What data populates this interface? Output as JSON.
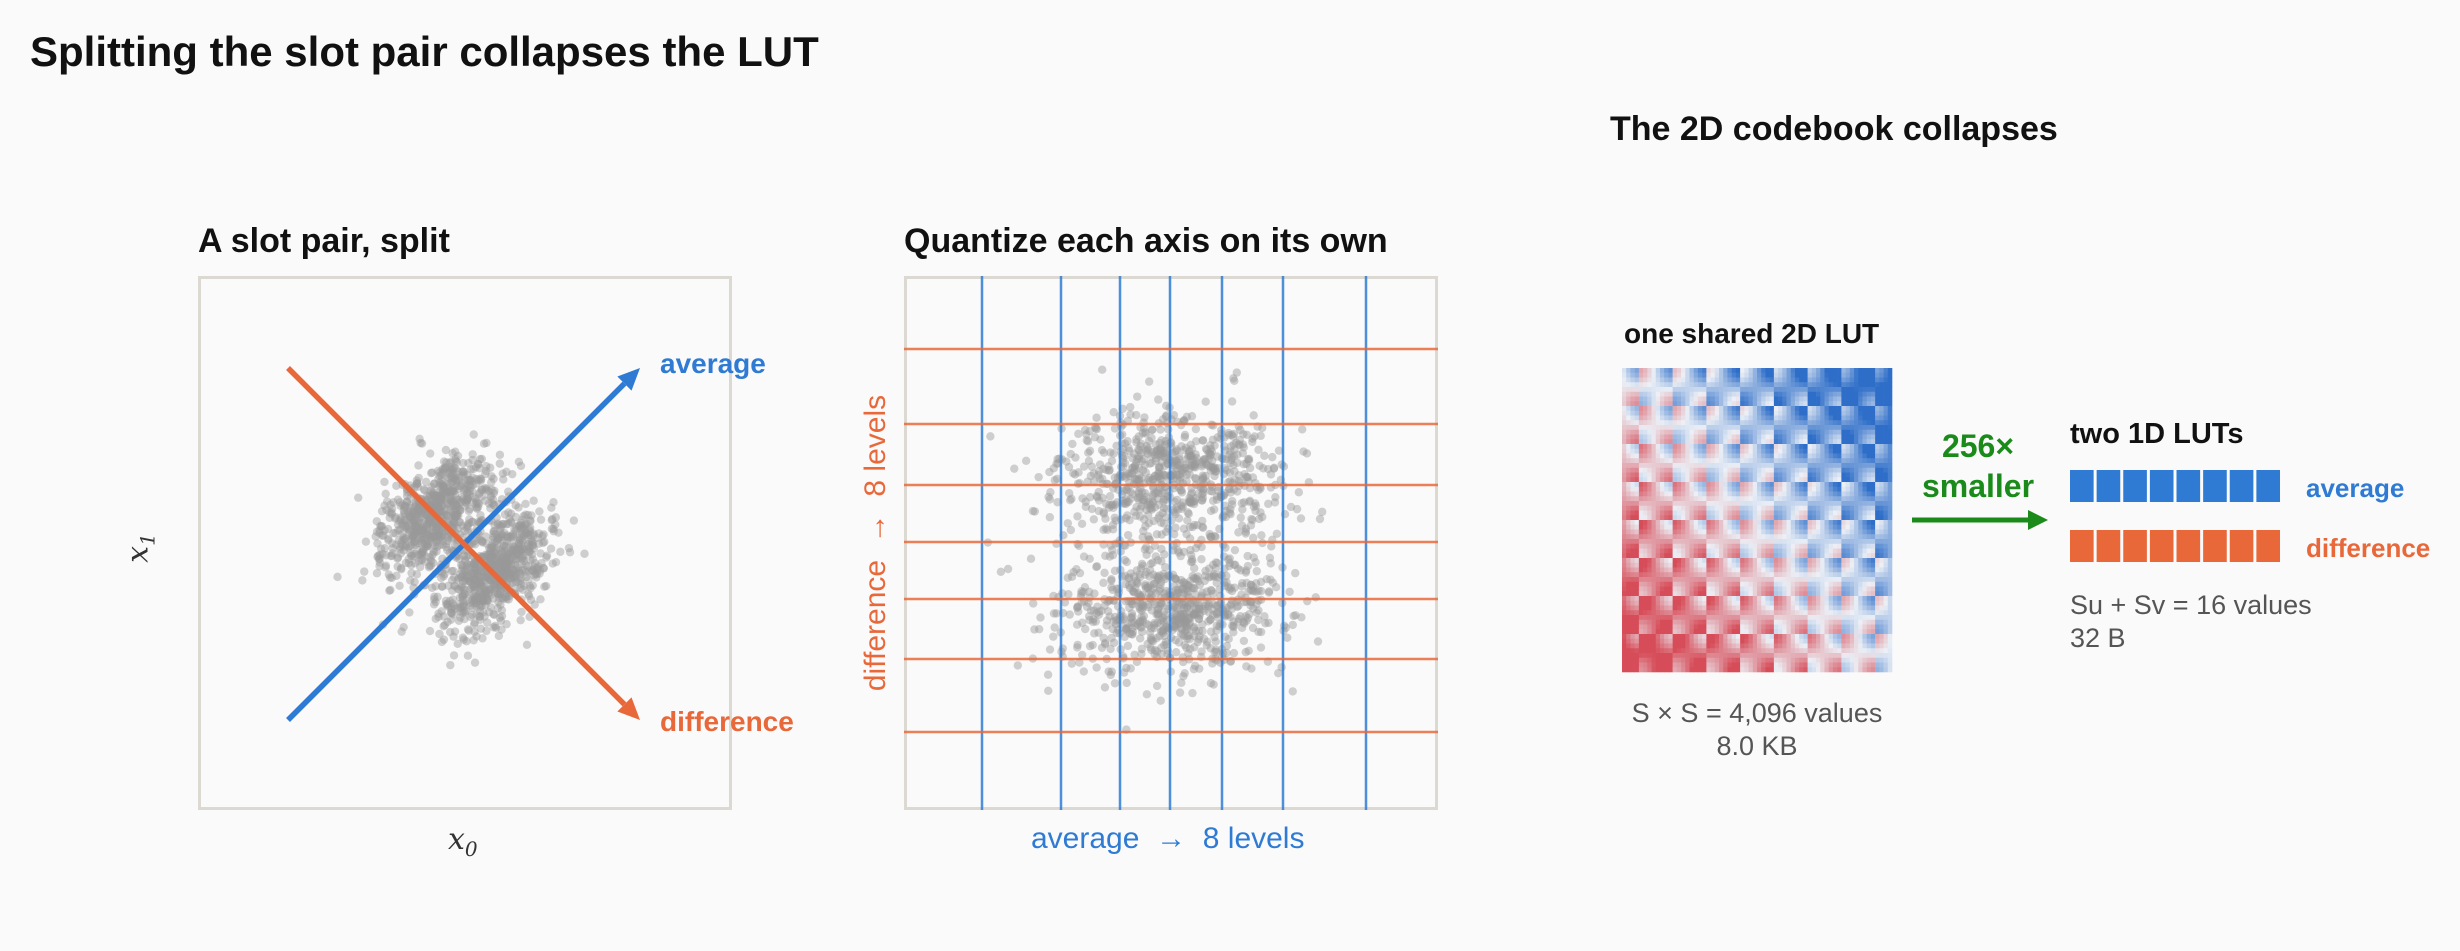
{
  "title": "Splitting the slot pair collapses the LUT",
  "panel1": {
    "title": "A slot pair, split",
    "xlabel_base": "x",
    "xlabel_sub": "0",
    "ylabel_base": "x",
    "ylabel_sub": "1",
    "average_label": "average",
    "difference_label": "difference"
  },
  "panel2": {
    "title": "Quantize each axis on its own",
    "xlabel": "average  →  8 levels",
    "ylabel": "difference  →  8 levels"
  },
  "panel3": {
    "title": "The 2D codebook collapses",
    "lut2d_title": "one shared 2D LUT",
    "lut2d_caption_line1": "S × S = 4,096 values",
    "lut2d_caption_line2": "8.0 KB",
    "arrow_label_line1": "256×",
    "arrow_label_line2": "smaller",
    "lut1d_title": "two 1D LUTs",
    "lut1d_average_label": "average",
    "lut1d_difference_label": "difference",
    "lut1d_caption_line1": "Su + Sv = 16 values",
    "lut1d_caption_line2": "32 B"
  },
  "colors": {
    "blue": "#2f7bd4",
    "orange": "#e8683a",
    "green": "#1a8a1a",
    "points": "#9a9a9a",
    "frame": "#dcd9d2"
  }
}
